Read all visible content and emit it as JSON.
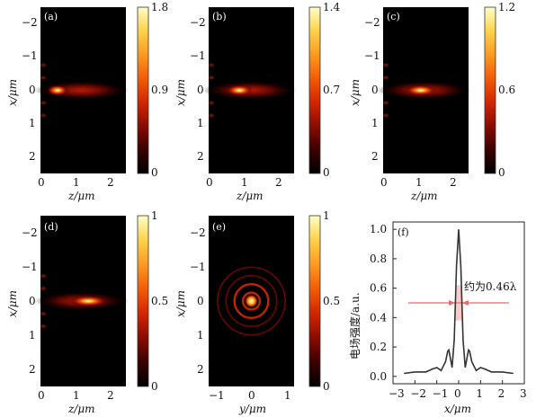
{
  "figure": {
    "panels": [
      {
        "letter": "(a)",
        "xlabel": "z/μm",
        "ylabel": "x/μm",
        "x_ticks": [
          "0",
          "1",
          "2"
        ],
        "y_ticks": [
          "−2",
          "−1",
          "0",
          "1",
          "2"
        ],
        "colorbar_ticks": [
          "1.8",
          "0.9",
          "0"
        ]
      },
      {
        "letter": "(b)",
        "xlabel": "z/μm",
        "ylabel": "x/μm",
        "x_ticks": [
          "0",
          "1",
          "2"
        ],
        "y_ticks": [
          "−2",
          "−1",
          "0",
          "1",
          "2"
        ],
        "colorbar_ticks": [
          "1.4",
          "0.7",
          "0"
        ]
      },
      {
        "letter": "(c)",
        "xlabel": "z/μm",
        "ylabel": "x/μm",
        "x_ticks": [
          "0",
          "1",
          "2"
        ],
        "y_ticks": [
          "−2",
          "−1",
          "0",
          "1",
          "2"
        ],
        "colorbar_ticks": [
          "1.2",
          "0.6",
          "0"
        ]
      },
      {
        "letter": "(d)",
        "xlabel": "z/μm",
        "ylabel": "x/μm",
        "x_ticks": [
          "0",
          "1",
          "2"
        ],
        "y_ticks": [
          "−2",
          "−1",
          "0",
          "1",
          "2"
        ],
        "colorbar_ticks": [
          "1",
          "0.5",
          "0"
        ]
      },
      {
        "letter": "(e)",
        "xlabel": "y/μm",
        "ylabel": "x/μm",
        "x_ticks": [
          "−1",
          "0",
          "1"
        ],
        "y_ticks": [
          "−2",
          "−1",
          "0",
          "1",
          "2"
        ],
        "colorbar_ticks": [
          "1",
          "0.5",
          "0"
        ]
      }
    ],
    "colormap": [
      "#000000",
      "#3a0000",
      "#8a0c00",
      "#d32600",
      "#f25c08",
      "#fb9a22",
      "#fdd24a",
      "#ffffc8"
    ]
  },
  "chart_data": [
    {
      "type": "heatmap",
      "panel": "(a)",
      "xlabel": "z/μm",
      "ylabel": "x/μm",
      "xlim": [
        0,
        2.5
      ],
      "ylim": [
        -2.5,
        2.5
      ],
      "colorbar_range": [
        0,
        1.8
      ],
      "hotspot": {
        "z": 0.5,
        "x": 0,
        "peak": 1.8
      }
    },
    {
      "type": "heatmap",
      "panel": "(b)",
      "xlabel": "z/μm",
      "ylabel": "x/μm",
      "xlim": [
        0,
        2.5
      ],
      "ylim": [
        -2.5,
        2.5
      ],
      "colorbar_range": [
        0,
        1.4
      ],
      "hotspot": {
        "z": 0.9,
        "x": 0,
        "peak": 1.4
      }
    },
    {
      "type": "heatmap",
      "panel": "(c)",
      "xlabel": "z/μm",
      "ylabel": "x/μm",
      "xlim": [
        0,
        2.5
      ],
      "ylim": [
        -2.5,
        2.5
      ],
      "colorbar_range": [
        0,
        1.2
      ],
      "hotspot": {
        "z": 1.1,
        "x": 0,
        "peak": 1.2
      }
    },
    {
      "type": "heatmap",
      "panel": "(d)",
      "xlabel": "z/μm",
      "ylabel": "x/μm",
      "xlim": [
        0,
        2.5
      ],
      "ylim": [
        -2.5,
        2.5
      ],
      "colorbar_range": [
        0,
        1
      ],
      "hotspot": {
        "z": 1.4,
        "x": 0,
        "peak": 1.0
      }
    },
    {
      "type": "heatmap",
      "panel": "(e)",
      "xlabel": "y/μm",
      "ylabel": "x/μm",
      "xlim": [
        -1.4,
        1.4
      ],
      "ylim": [
        -2.5,
        2.5
      ],
      "colorbar_range": [
        0,
        1
      ],
      "hotspot": {
        "y": 0,
        "x": 0,
        "peak": 1.0,
        "ring_spacing": 0.45
      }
    },
    {
      "type": "line",
      "panel": "(f)",
      "xlabel": "x/μm",
      "ylabel": "电场强度/a.u.",
      "xlim": [
        -3,
        3
      ],
      "ylim": [
        -0.05,
        1.05
      ],
      "x_ticks": [
        "−3",
        "−2",
        "−1",
        "0",
        "1",
        "2",
        "3"
      ],
      "y_ticks": [
        "0.0",
        "0.2",
        "0.4",
        "0.6",
        "0.8",
        "1.0"
      ],
      "annotation": "约为0.46λ",
      "fwhm_level": 0.5,
      "series": [
        {
          "x": [
            -2.5,
            -2.0,
            -1.5,
            -1.2,
            -1.0,
            -0.8,
            -0.6,
            -0.5,
            -0.45,
            -0.4,
            -0.3,
            -0.2,
            -0.1,
            0.0,
            0.1,
            0.2,
            0.3,
            0.4,
            0.45,
            0.5,
            0.6,
            0.8,
            1.0,
            1.2,
            1.5,
            2.0,
            2.5
          ],
          "y": [
            0.02,
            0.03,
            0.03,
            0.05,
            0.06,
            0.04,
            0.1,
            0.17,
            0.18,
            0.14,
            0.06,
            0.25,
            0.75,
            1.0,
            0.75,
            0.25,
            0.06,
            0.14,
            0.18,
            0.17,
            0.1,
            0.04,
            0.06,
            0.05,
            0.03,
            0.03,
            0.02
          ]
        }
      ]
    }
  ]
}
